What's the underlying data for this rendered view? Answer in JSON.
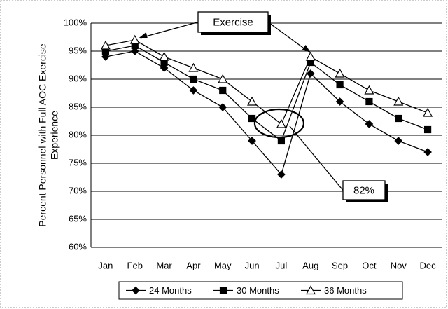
{
  "chart_data": {
    "type": "line",
    "ylabel": [
      "Percent Personnel with Full AOC Exercise",
      "Experience"
    ],
    "categories": [
      "Jan",
      "Feb",
      "Mar",
      "Apr",
      "May",
      "Jun",
      "Jul",
      "Aug",
      "Sep",
      "Oct",
      "Nov",
      "Dec"
    ],
    "series": [
      {
        "name": "24 Months",
        "color": "#000000",
        "marker": "diamond",
        "values": [
          94,
          95,
          92,
          88,
          85,
          79,
          73,
          91,
          86,
          82,
          79,
          77
        ]
      },
      {
        "name": "30 Months",
        "color": "#000000",
        "marker": "square",
        "values": [
          95,
          96,
          93,
          90,
          88,
          83,
          79,
          93,
          89,
          86,
          83,
          81
        ]
      },
      {
        "name": "36 Months",
        "color": "#000000",
        "marker": "triangle",
        "values": [
          96,
          97,
          94,
          92,
          90,
          86,
          82,
          94,
          91,
          88,
          86,
          84
        ]
      }
    ],
    "ylim": [
      60,
      100
    ],
    "yticks": [
      {
        "value": 60,
        "label": "60%"
      },
      {
        "value": 65,
        "label": "65%"
      },
      {
        "value": 70,
        "label": "70%"
      },
      {
        "value": 75,
        "label": "75%"
      },
      {
        "value": 80,
        "label": "80%"
      },
      {
        "value": 85,
        "label": "85%"
      },
      {
        "value": 90,
        "label": "90%"
      },
      {
        "value": 95,
        "label": "95%"
      },
      {
        "value": 100,
        "label": "100%"
      }
    ],
    "grid": true,
    "legend": "bottom",
    "annotations": [
      {
        "text": "Exercise"
      },
      {
        "text": "82%"
      }
    ]
  }
}
